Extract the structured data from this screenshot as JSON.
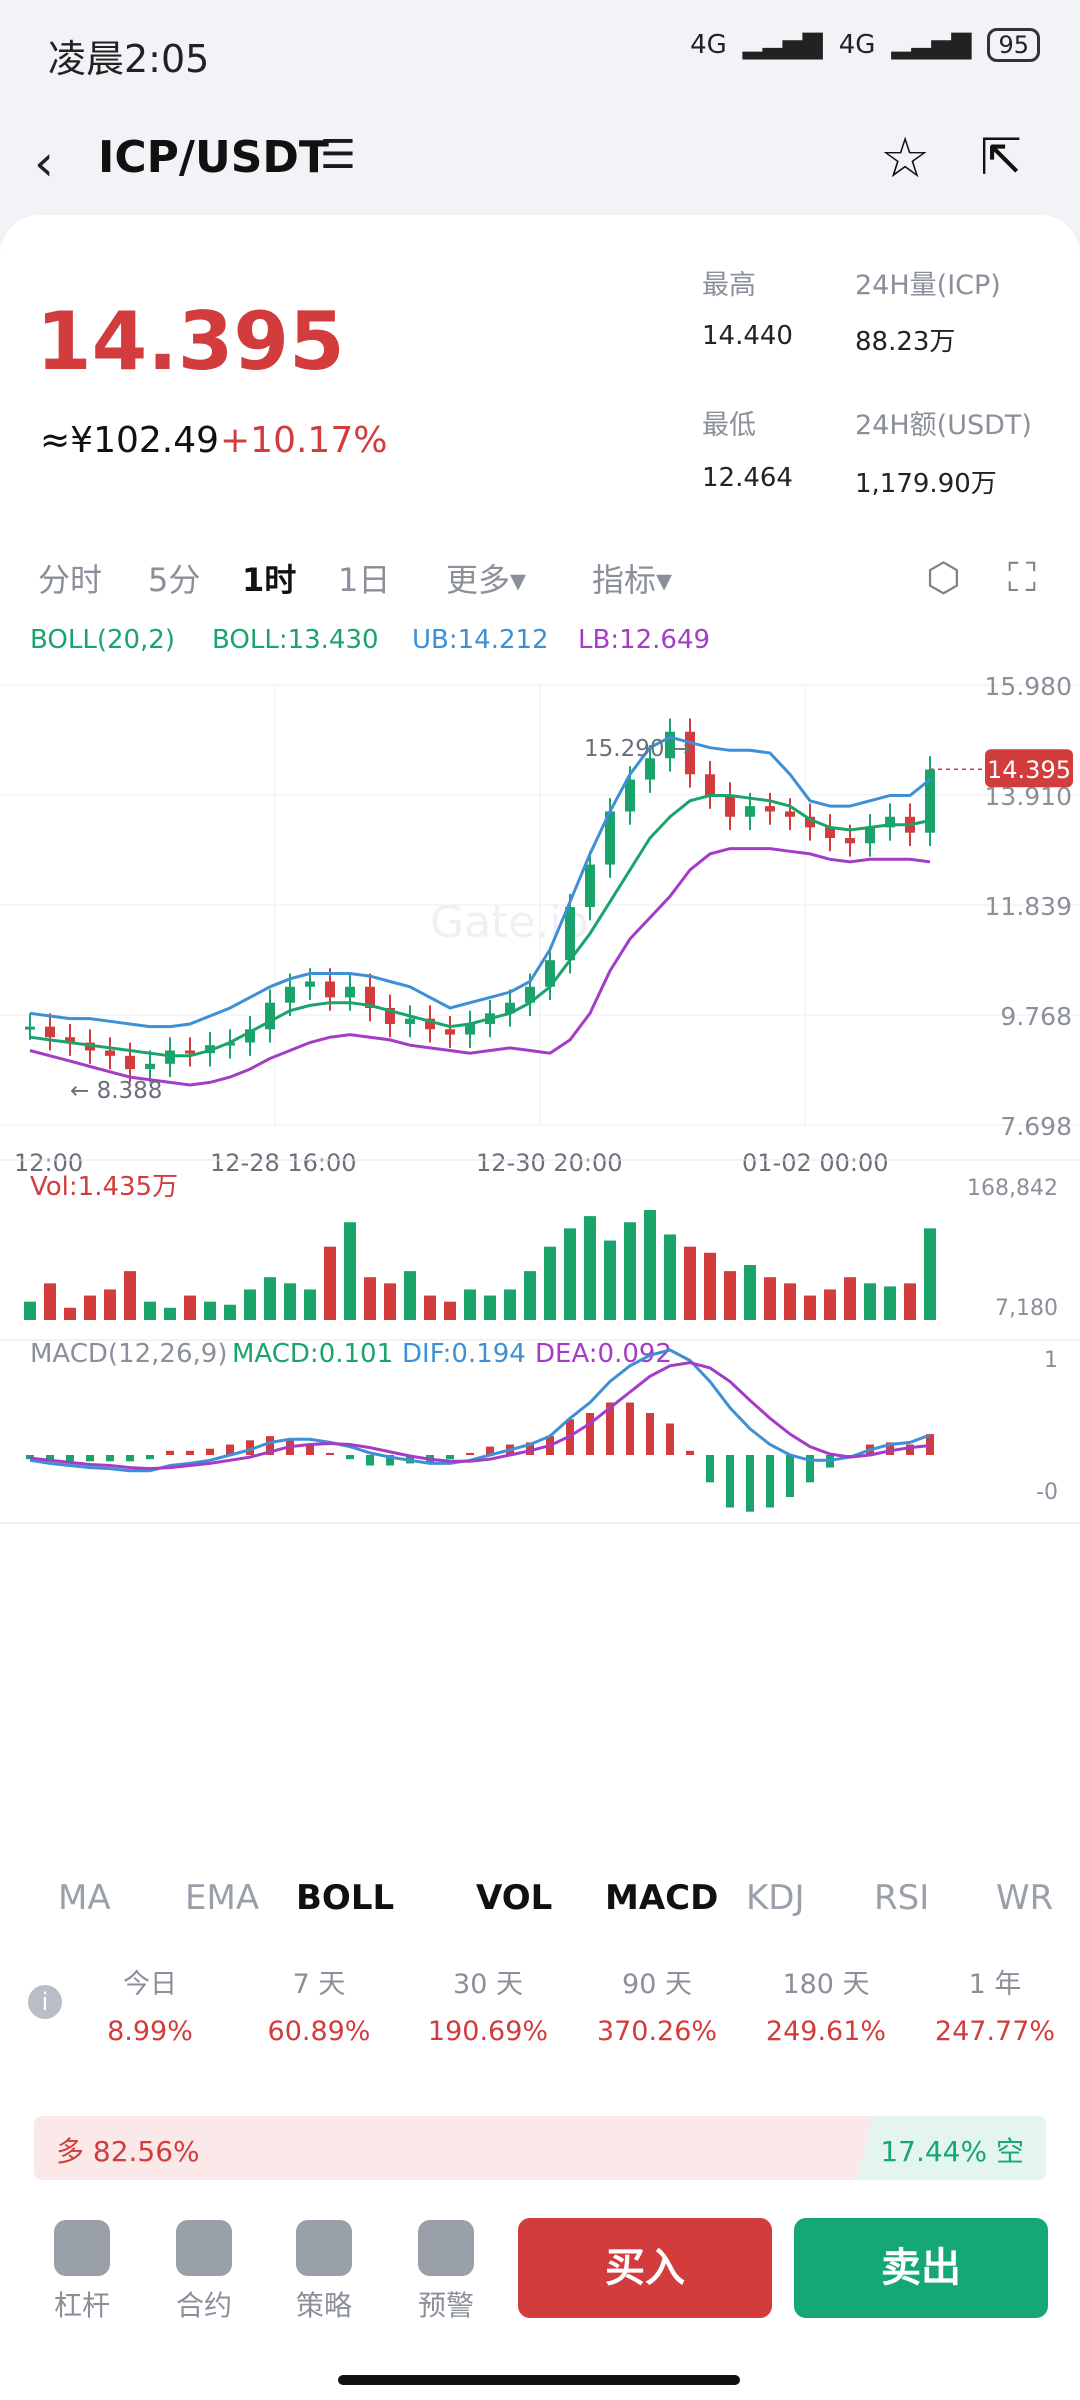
{
  "status": {
    "time": "凌晨2:05",
    "net1": "4G",
    "net2": "4G",
    "battery": "95"
  },
  "nav": {
    "back_icon": "chevron-left-icon",
    "title": "ICP/USDT",
    "menu_icon": "menu-lines-icon",
    "star_icon": "star-icon",
    "share_icon": "share-icon"
  },
  "ticker": {
    "price": "14.395",
    "cny": "≈¥102.49",
    "change": "+10.17%",
    "high_label": "最高",
    "high": "14.440",
    "vol24_label": "24H量(ICP)",
    "vol24": "88.23万",
    "low_label": "最低",
    "low": "12.464",
    "amt24_label": "24H额(USDT)",
    "amt24": "1,179.90万"
  },
  "timeframes": [
    "分时",
    "5分",
    "1时",
    "1日",
    "更多▾",
    "指标▾"
  ],
  "active_timeframe": "1时",
  "boll": {
    "name": "BOLL(20,2)",
    "mid": "BOLL:13.430",
    "ub": "UB:14.212",
    "lb": "LB:12.649"
  },
  "chart_data": [
    {
      "type": "line",
      "title": "ICP/USDT 1时",
      "y_ticks": [
        "15.980",
        "13.910",
        "11.839",
        "9.768",
        "7.698"
      ],
      "x_ticks": [
        "12:00",
        "12-28 16:00",
        "12-30 20:00",
        "01-02 00:00"
      ],
      "ylim": [
        7.698,
        15.98
      ],
      "annotations": {
        "max": "15.290",
        "min": "8.388",
        "last": "14.395"
      },
      "series": [
        {
          "name": "Close",
          "values": [
            9.55,
            9.35,
            9.25,
            9.1,
            9.0,
            8.75,
            8.85,
            9.1,
            9.05,
            9.2,
            9.25,
            9.5,
            10.0,
            10.3,
            10.4,
            10.1,
            10.3,
            9.9,
            9.6,
            9.7,
            9.5,
            9.4,
            9.6,
            9.8,
            10.0,
            10.3,
            10.8,
            11.8,
            12.6,
            13.6,
            14.2,
            14.6,
            15.1,
            14.3,
            13.9,
            13.5,
            13.7,
            13.6,
            13.5,
            13.3,
            13.1,
            13.0,
            13.3,
            13.5,
            13.2,
            14.39
          ]
        },
        {
          "name": "UB",
          "values": [
            9.8,
            9.75,
            9.7,
            9.7,
            9.65,
            9.6,
            9.55,
            9.55,
            9.6,
            9.75,
            9.9,
            10.1,
            10.3,
            10.45,
            10.55,
            10.55,
            10.55,
            10.5,
            10.4,
            10.3,
            10.1,
            9.9,
            10.0,
            10.1,
            10.2,
            10.4,
            11.0,
            11.9,
            12.8,
            13.6,
            14.3,
            14.8,
            15.0,
            14.9,
            14.8,
            14.75,
            14.75,
            14.7,
            14.3,
            13.8,
            13.7,
            13.7,
            13.8,
            13.9,
            13.9,
            14.2
          ]
        },
        {
          "name": "BOLL",
          "values": [
            9.35,
            9.3,
            9.25,
            9.2,
            9.15,
            9.1,
            9.05,
            9.0,
            9.0,
            9.1,
            9.25,
            9.45,
            9.65,
            9.85,
            9.95,
            10.0,
            10.0,
            9.95,
            9.85,
            9.75,
            9.65,
            9.55,
            9.6,
            9.7,
            9.8,
            10.0,
            10.3,
            10.8,
            11.3,
            11.9,
            12.5,
            13.1,
            13.5,
            13.8,
            13.9,
            13.9,
            13.85,
            13.8,
            13.7,
            13.45,
            13.3,
            13.25,
            13.3,
            13.35,
            13.35,
            13.43
          ]
        },
        {
          "name": "LB",
          "values": [
            9.1,
            9.0,
            8.9,
            8.8,
            8.7,
            8.6,
            8.55,
            8.5,
            8.45,
            8.5,
            8.6,
            8.75,
            8.95,
            9.1,
            9.25,
            9.35,
            9.4,
            9.35,
            9.3,
            9.2,
            9.15,
            9.1,
            9.05,
            9.1,
            9.15,
            9.1,
            9.05,
            9.3,
            9.8,
            10.6,
            11.2,
            11.6,
            12.0,
            12.5,
            12.8,
            12.9,
            12.9,
            12.9,
            12.85,
            12.8,
            12.7,
            12.65,
            12.7,
            12.7,
            12.7,
            12.65
          ]
        }
      ]
    },
    {
      "type": "bar",
      "title": "Vol:1.435万",
      "y_ticks": [
        "168,842",
        "7,180"
      ],
      "series": [
        {
          "name": "Vol",
          "values": [
            30,
            60,
            20,
            40,
            50,
            80,
            30,
            20,
            40,
            30,
            25,
            50,
            70,
            60,
            50,
            120,
            160,
            70,
            60,
            80,
            40,
            30,
            50,
            40,
            50,
            80,
            120,
            150,
            170,
            130,
            160,
            180,
            140,
            120,
            110,
            80,
            90,
            70,
            60,
            40,
            50,
            70,
            60,
            55,
            60,
            150
          ]
        }
      ]
    },
    {
      "type": "line",
      "title": "MACD(12,26,9)",
      "y_ticks": [
        "1",
        "-0"
      ],
      "labels": {
        "macd": "MACD:0.101",
        "dif": "DIF:0.194",
        "dea": "DEA:0.092"
      },
      "series": [
        {
          "name": "DIF",
          "values": [
            -0.05,
            -0.08,
            -0.1,
            -0.12,
            -0.13,
            -0.15,
            -0.15,
            -0.1,
            -0.08,
            -0.05,
            0.0,
            0.05,
            0.12,
            0.15,
            0.15,
            0.12,
            0.08,
            0.02,
            -0.02,
            -0.05,
            -0.08,
            -0.08,
            -0.05,
            0.0,
            0.05,
            0.1,
            0.18,
            0.35,
            0.5,
            0.7,
            0.85,
            0.95,
            1.0,
            0.9,
            0.7,
            0.45,
            0.25,
            0.1,
            0.0,
            -0.05,
            -0.05,
            -0.02,
            0.05,
            0.1,
            0.12,
            0.19
          ]
        },
        {
          "name": "DEA",
          "values": [
            -0.03,
            -0.05,
            -0.07,
            -0.09,
            -0.1,
            -0.12,
            -0.13,
            -0.12,
            -0.1,
            -0.08,
            -0.05,
            -0.02,
            0.03,
            0.08,
            0.1,
            0.11,
            0.1,
            0.07,
            0.03,
            -0.01,
            -0.04,
            -0.06,
            -0.06,
            -0.04,
            0.0,
            0.04,
            0.09,
            0.18,
            0.3,
            0.45,
            0.6,
            0.75,
            0.85,
            0.88,
            0.83,
            0.7,
            0.52,
            0.35,
            0.2,
            0.08,
            0.01,
            -0.02,
            0.0,
            0.04,
            0.07,
            0.09
          ]
        }
      ]
    }
  ],
  "vol_label": "Vol:1.435万",
  "vol_ticks": {
    "top": "168,842",
    "bottom": "7,180"
  },
  "macd": {
    "name": "MACD(12,26,9)",
    "macd": "MACD:0.101",
    "dif": "DIF:0.194",
    "dea": "DEA:0.092",
    "top": "1",
    "bottom": "-0"
  },
  "indicator_tabs": [
    "MA",
    "EMA",
    "BOLL",
    "VOL",
    "MACD",
    "KDJ",
    "RSI",
    "WR"
  ],
  "performance": [
    {
      "label": "今日",
      "value": "8.99%"
    },
    {
      "label": "7 天",
      "value": "60.89%"
    },
    {
      "label": "30 天",
      "value": "190.69%"
    },
    {
      "label": "90 天",
      "value": "370.26%"
    },
    {
      "label": "180 天",
      "value": "249.61%"
    },
    {
      "label": "1 年",
      "value": "247.77%"
    }
  ],
  "sentiment": {
    "long": "多 82.56%",
    "short": "17.44% 空",
    "long_fraction": 0.8256
  },
  "bottom": {
    "items": [
      "杠杆",
      "合约",
      "策略",
      "预警"
    ],
    "buy": "买入",
    "sell": "卖出"
  },
  "colors": {
    "up": "#d23c3c",
    "down": "#16a874",
    "ub": "#3d8fd6",
    "mid": "#1aa46b",
    "lb": "#a43cc7"
  }
}
